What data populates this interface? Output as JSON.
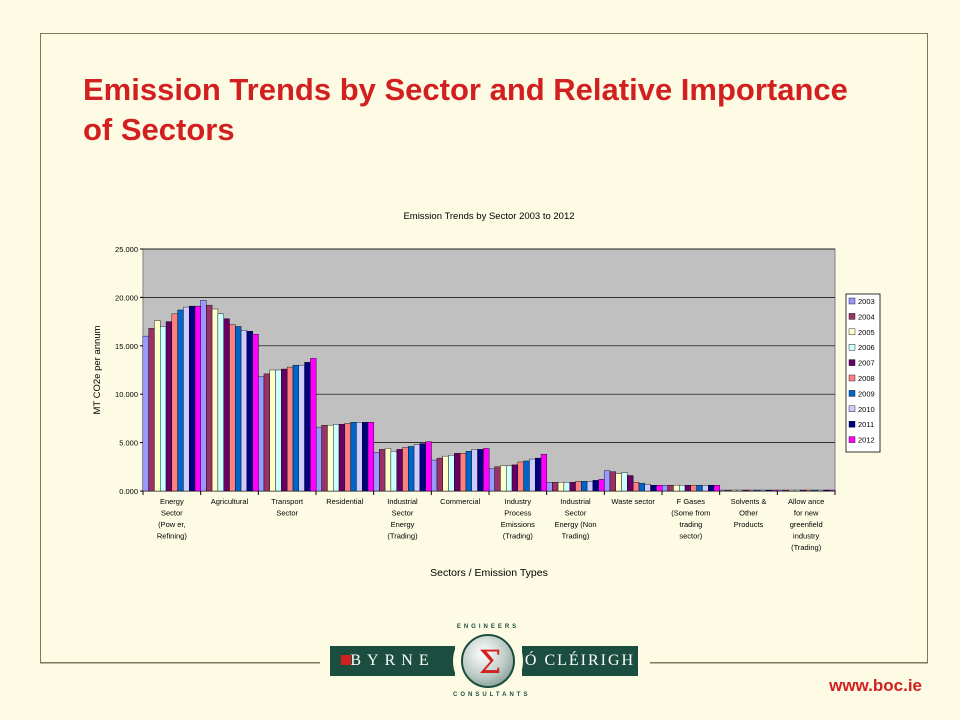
{
  "slide": {
    "title": "Emission Trends by Sector and Relative Importance of Sectors",
    "footer_url": "www.boc.ie"
  },
  "logo": {
    "left_text": "BYRNE",
    "right_text": "Ó CLÉIRIGH",
    "top_text": "ENGINEERS",
    "bottom_text": "CONSULTANTS",
    "symbol": "Σ"
  },
  "colors": {
    "title": "#d21f1f",
    "plot_bg": "#c0c0c0",
    "background": "#fdfbe3"
  },
  "chart_data": {
    "type": "bar",
    "title": "Emission Trends by Sector 2003 to 2012",
    "xlabel": "Sectors / Emission Types",
    "ylabel": "MT CO2e per annum",
    "ylim": [
      0,
      25
    ],
    "yticks": [
      "0.000",
      "5.000",
      "10.000",
      "15.000",
      "20.000",
      "25.000"
    ],
    "grid": true,
    "legend_position": "right",
    "categories": [
      [
        "Energy",
        "Sector",
        "(Pow er,",
        "Refining)"
      ],
      [
        "Agricultural"
      ],
      [
        "Transport",
        "Sector"
      ],
      [
        "Residential"
      ],
      [
        "Industrial",
        "Sector",
        "Energy",
        "(Trading)"
      ],
      [
        "Commercial"
      ],
      [
        "Industry",
        "Process",
        "Emissions",
        "(Trading)"
      ],
      [
        "Industrial",
        "Sector",
        "Energy (Non",
        "Trading)"
      ],
      [
        "Waste sector"
      ],
      [
        "F Gases",
        "(Some from",
        "trading",
        "sector)"
      ],
      [
        "Solvents &",
        "Other",
        "Products"
      ],
      [
        "Allow ance",
        "for new",
        "greenfield",
        "industry",
        "(Trading)"
      ]
    ],
    "series": [
      {
        "name": "2003",
        "color": "#9999ff",
        "values": [
          16.0,
          19.7,
          11.8,
          6.6,
          4.0,
          3.2,
          2.3,
          0.9,
          2.1,
          0.6,
          0.1,
          0.1
        ]
      },
      {
        "name": "2004",
        "color": "#993366",
        "values": [
          16.8,
          19.2,
          12.1,
          6.8,
          4.3,
          3.4,
          2.5,
          0.9,
          2.0,
          0.6,
          0.1,
          0.1
        ]
      },
      {
        "name": "2005",
        "color": "#ffffcc",
        "values": [
          17.6,
          18.8,
          12.5,
          6.8,
          4.4,
          3.6,
          2.6,
          0.9,
          1.8,
          0.6,
          0.1,
          0.1
        ]
      },
      {
        "name": "2006",
        "color": "#ccffff",
        "values": [
          17.0,
          18.3,
          12.5,
          6.9,
          4.1,
          3.7,
          2.6,
          0.9,
          1.9,
          0.6,
          0.1,
          0.1
        ]
      },
      {
        "name": "2007",
        "color": "#660066",
        "values": [
          17.5,
          17.8,
          12.6,
          6.9,
          4.3,
          3.9,
          2.7,
          0.9,
          1.6,
          0.6,
          0.1,
          0.1
        ]
      },
      {
        "name": "2008",
        "color": "#ff8080",
        "values": [
          18.3,
          17.2,
          12.8,
          7.0,
          4.5,
          3.9,
          3.0,
          1.0,
          0.9,
          0.6,
          0.1,
          0.1
        ]
      },
      {
        "name": "2009",
        "color": "#0066cc",
        "values": [
          18.7,
          17.0,
          13.0,
          7.1,
          4.6,
          4.1,
          3.1,
          1.0,
          0.8,
          0.6,
          0.1,
          0.1
        ]
      },
      {
        "name": "2010",
        "color": "#ccccff",
        "values": [
          19.0,
          16.6,
          13.0,
          7.1,
          4.8,
          4.3,
          3.3,
          1.0,
          0.7,
          0.6,
          0.1,
          0.1
        ]
      },
      {
        "name": "2011",
        "color": "#000080",
        "values": [
          19.1,
          16.5,
          13.3,
          7.1,
          4.9,
          4.3,
          3.4,
          1.1,
          0.6,
          0.6,
          0.1,
          0.1
        ]
      },
      {
        "name": "2012",
        "color": "#ff00ff",
        "values": [
          19.1,
          16.2,
          13.7,
          7.1,
          5.1,
          4.4,
          3.8,
          1.2,
          0.6,
          0.6,
          0.1,
          0.1
        ]
      }
    ]
  }
}
